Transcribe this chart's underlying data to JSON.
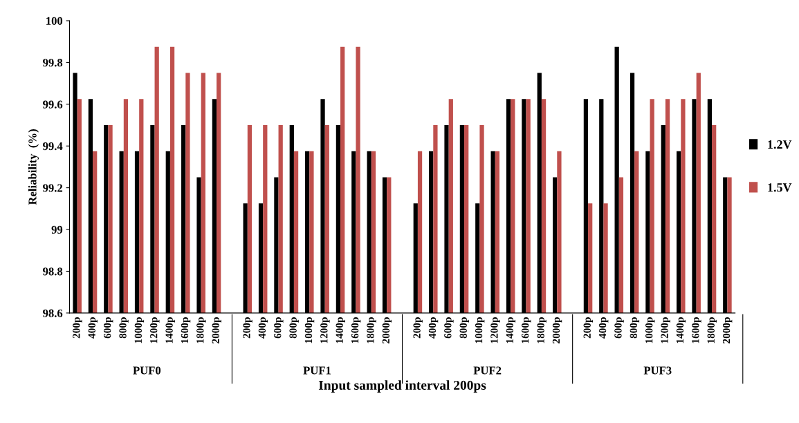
{
  "chart_data": {
    "type": "bar",
    "xlabel": "Input sampled interval 200ps",
    "ylabel": "Reliability  (%)",
    "categories": [
      "200p",
      "400p",
      "600p",
      "800p",
      "1000p",
      "1200p",
      "1400p",
      "1600p",
      "1800p",
      "2000p",
      "200p",
      "400p",
      "600p",
      "800p",
      "1000p",
      "1200p",
      "1400p",
      "1600p",
      "1800p",
      "2000p",
      "200p",
      "400p",
      "600p",
      "800p",
      "1000p",
      "1200p",
      "1400p",
      "1600p",
      "1800p",
      "2000p",
      "200p",
      "400p",
      "600p",
      "800p",
      "1000p",
      "1200p",
      "1400p",
      "1600p",
      "1800p",
      "2000p"
    ],
    "annotations": [
      "PUF0",
      "PUF1",
      "PUF2",
      "PUF3"
    ],
    "series": [
      {
        "name": "1.2V",
        "color": "#000000",
        "values": [
          99.75,
          99.625,
          99.5,
          99.375,
          99.375,
          99.5,
          99.375,
          99.5,
          99.25,
          99.625,
          99.125,
          99.125,
          99.25,
          99.5,
          99.375,
          99.625,
          99.5,
          99.375,
          99.375,
          99.25,
          99.125,
          99.375,
          99.5,
          99.5,
          99.125,
          99.375,
          99.625,
          99.625,
          99.75,
          99.25,
          99.625,
          99.625,
          99.875,
          99.75,
          99.375,
          99.5,
          99.375,
          99.625,
          99.625,
          99.25
        ]
      },
      {
        "name": "1.5V",
        "color": "#c0504d",
        "values": [
          99.625,
          99.375,
          99.5,
          99.625,
          99.625,
          99.875,
          99.875,
          99.75,
          99.75,
          99.75,
          99.5,
          99.5,
          99.5,
          99.375,
          99.375,
          99.5,
          99.875,
          99.875,
          99.375,
          99.25,
          99.375,
          99.5,
          99.625,
          99.5,
          99.5,
          99.375,
          99.625,
          99.625,
          99.625,
          99.375,
          99.125,
          99.125,
          99.25,
          99.375,
          99.625,
          99.625,
          99.625,
          99.75,
          99.5,
          99.25
        ]
      }
    ],
    "ylim": [
      98.6,
      100
    ],
    "yticks": [
      98.6,
      98.8,
      99,
      99.2,
      99.4,
      99.6,
      99.8,
      100
    ],
    "grid": false,
    "legend": "right"
  }
}
